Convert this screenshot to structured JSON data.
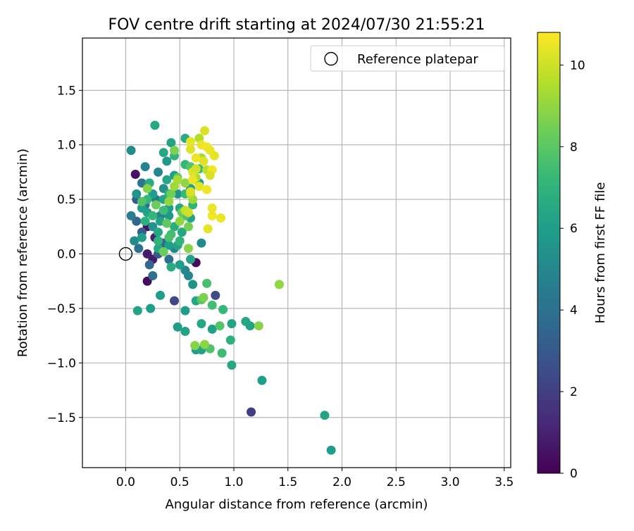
{
  "chart_data": {
    "type": "scatter",
    "title": "FOV centre drift starting at 2024/07/30 21:55:21",
    "xlabel": "Angular distance from reference (arcmin)",
    "ylabel": "Rotation from reference (arcmin)",
    "xlim": [
      -0.4,
      3.56
    ],
    "ylim": [
      -1.96,
      1.98
    ],
    "xticks": [
      0.0,
      0.5,
      1.0,
      1.5,
      2.0,
      2.5,
      3.0,
      3.5
    ],
    "xtick_labels": [
      "0.0",
      "0.5",
      "1.0",
      "1.5",
      "2.0",
      "2.5",
      "3.0",
      "3.5"
    ],
    "yticks": [
      -1.5,
      -1.0,
      -0.5,
      0.0,
      0.5,
      1.0,
      1.5
    ],
    "ytick_labels": [
      "−1.5",
      "−1.0",
      "−0.5",
      "0.0",
      "0.5",
      "1.0",
      "1.5"
    ],
    "grid": true,
    "legend": {
      "placement": "top-right",
      "entries": [
        "Reference platepar"
      ]
    },
    "reference_point": {
      "x": 0.0,
      "y": 0.0
    },
    "colorbar": {
      "label": "Hours from first FF file",
      "min": 0,
      "max": 10.8,
      "ticks": [
        0,
        2,
        4,
        6,
        8,
        10
      ],
      "tick_labels": [
        "0",
        "2",
        "4",
        "6",
        "8",
        "10"
      ],
      "colormap": "viridis",
      "colormap_stops": [
        "#440154",
        "#482878",
        "#3e4a89",
        "#31688e",
        "#26828e",
        "#1f9e89",
        "#35b779",
        "#6ece58",
        "#b5de2b",
        "#fde725"
      ]
    },
    "points": [
      {
        "x": 0.2,
        "y": -0.25,
        "h": 0.3
      },
      {
        "x": 0.65,
        "y": -0.08,
        "h": 0.3
      },
      {
        "x": 0.2,
        "y": 0.0,
        "h": 0.8
      },
      {
        "x": 0.25,
        "y": -0.05,
        "h": 0.8
      },
      {
        "x": 0.09,
        "y": 0.73,
        "h": 0.5
      },
      {
        "x": 0.2,
        "y": 0.25,
        "h": 0.5
      },
      {
        "x": 0.27,
        "y": 0.15,
        "h": 1.0
      },
      {
        "x": 1.16,
        "y": -1.45,
        "h": 2.0
      },
      {
        "x": 0.45,
        "y": -0.43,
        "h": 2.3
      },
      {
        "x": 0.83,
        "y": -0.38,
        "h": 2.5
      },
      {
        "x": 0.1,
        "y": 0.5,
        "h": 3.0
      },
      {
        "x": 0.15,
        "y": 0.2,
        "h": 3.2
      },
      {
        "x": 0.22,
        "y": -0.1,
        "h": 3.5
      },
      {
        "x": 0.3,
        "y": 0.0,
        "h": 3.0
      },
      {
        "x": 0.1,
        "y": 0.3,
        "h": 3.5
      },
      {
        "x": 0.18,
        "y": 0.45,
        "h": 3.8
      },
      {
        "x": 0.25,
        "y": -0.2,
        "h": 4.0
      },
      {
        "x": 0.35,
        "y": 0.1,
        "h": 3.6
      },
      {
        "x": 0.4,
        "y": -0.05,
        "h": 3.9
      },
      {
        "x": 0.15,
        "y": 0.65,
        "h": 4.2
      },
      {
        "x": 0.28,
        "y": 0.5,
        "h": 4.5
      },
      {
        "x": 0.12,
        "y": 0.05,
        "h": 4.0
      },
      {
        "x": 0.32,
        "y": 0.35,
        "h": 4.8
      },
      {
        "x": 0.05,
        "y": 0.35,
        "h": 4.6
      },
      {
        "x": 0.18,
        "y": 0.8,
        "h": 4.8
      },
      {
        "x": 0.05,
        "y": 0.95,
        "h": 5.2
      },
      {
        "x": 0.45,
        "y": 0.05,
        "h": 5.0
      },
      {
        "x": 0.55,
        "y": -0.15,
        "h": 5.0
      },
      {
        "x": 0.58,
        "y": -0.2,
        "h": 5.0
      },
      {
        "x": 0.62,
        "y": -0.28,
        "h": 5.5
      },
      {
        "x": 0.7,
        "y": 0.1,
        "h": 5.2
      },
      {
        "x": 0.3,
        "y": 0.75,
        "h": 5.0
      },
      {
        "x": 0.35,
        "y": 0.6,
        "h": 5.5
      },
      {
        "x": 0.4,
        "y": 0.35,
        "h": 5.8
      },
      {
        "x": 0.25,
        "y": 0.25,
        "h": 5.4
      },
      {
        "x": 0.1,
        "y": 0.55,
        "h": 5.6
      },
      {
        "x": 0.08,
        "y": 0.12,
        "h": 5.2
      },
      {
        "x": 0.48,
        "y": 0.55,
        "h": 5.6
      },
      {
        "x": 0.38,
        "y": 0.85,
        "h": 5.8
      },
      {
        "x": 0.5,
        "y": -0.1,
        "h": 6.0
      },
      {
        "x": 0.32,
        "y": -0.38,
        "h": 6.0
      },
      {
        "x": 0.23,
        "y": -0.5,
        "h": 6.0
      },
      {
        "x": 0.11,
        "y": -0.52,
        "h": 6.2
      },
      {
        "x": 0.48,
        "y": -0.67,
        "h": 6.0
      },
      {
        "x": 0.55,
        "y": -0.71,
        "h": 6.2
      },
      {
        "x": 0.55,
        "y": -0.52,
        "h": 6.0
      },
      {
        "x": 0.65,
        "y": -0.43,
        "h": 6.4
      },
      {
        "x": 0.65,
        "y": -0.88,
        "h": 6.0
      },
      {
        "x": 0.7,
        "y": -0.88,
        "h": 6.2
      },
      {
        "x": 0.7,
        "y": -0.64,
        "h": 6.4
      },
      {
        "x": 0.8,
        "y": -0.69,
        "h": 6.1
      },
      {
        "x": 0.98,
        "y": -0.64,
        "h": 6.3
      },
      {
        "x": 0.97,
        "y": -0.79,
        "h": 6.8
      },
      {
        "x": 0.98,
        "y": -1.02,
        "h": 6.5
      },
      {
        "x": 1.11,
        "y": -0.62,
        "h": 6.4
      },
      {
        "x": 1.15,
        "y": -0.66,
        "h": 6.2
      },
      {
        "x": 1.26,
        "y": -1.16,
        "h": 6.0
      },
      {
        "x": 1.84,
        "y": -1.48,
        "h": 6.2
      },
      {
        "x": 1.9,
        "y": -1.8,
        "h": 6.0
      },
      {
        "x": 0.35,
        "y": 0.93,
        "h": 6.4
      },
      {
        "x": 0.27,
        "y": 1.18,
        "h": 6.5
      },
      {
        "x": 0.42,
        "y": 1.02,
        "h": 6.2
      },
      {
        "x": 0.55,
        "y": 1.06,
        "h": 6.6
      },
      {
        "x": 0.45,
        "y": 0.72,
        "h": 6.0
      },
      {
        "x": 0.6,
        "y": 0.33,
        "h": 6.3
      },
      {
        "x": 0.2,
        "y": 0.38,
        "h": 6.2
      },
      {
        "x": 0.15,
        "y": 0.42,
        "h": 6.1
      },
      {
        "x": 0.52,
        "y": 0.2,
        "h": 6.5
      },
      {
        "x": 0.4,
        "y": 0.42,
        "h": 6.0
      },
      {
        "x": 0.3,
        "y": 0.2,
        "h": 6.4
      },
      {
        "x": 0.6,
        "y": -0.05,
        "h": 6.2
      },
      {
        "x": 0.42,
        "y": -0.12,
        "h": 6.6
      },
      {
        "x": 0.35,
        "y": 0.5,
        "h": 6.3
      },
      {
        "x": 0.25,
        "y": 0.55,
        "h": 6.0
      },
      {
        "x": 0.15,
        "y": 0.15,
        "h": 6.0
      },
      {
        "x": 0.3,
        "y": 0.05,
        "h": 6.5
      },
      {
        "x": 0.6,
        "y": 0.6,
        "h": 6.1
      },
      {
        "x": 0.68,
        "y": 0.65,
        "h": 6.0
      },
      {
        "x": 0.5,
        "y": 0.42,
        "h": 6.4
      },
      {
        "x": 0.58,
        "y": 0.35,
        "h": 6.2
      },
      {
        "x": 0.22,
        "y": 0.65,
        "h": 6.6
      },
      {
        "x": 0.45,
        "y": 0.25,
        "h": 6.7
      },
      {
        "x": 0.4,
        "y": 0.08,
        "h": 6.0
      },
      {
        "x": 0.48,
        "y": 0.08,
        "h": 6.3
      },
      {
        "x": 0.38,
        "y": 0.68,
        "h": 6.4
      },
      {
        "x": 0.32,
        "y": 0.3,
        "h": 6.2
      },
      {
        "x": 0.18,
        "y": 0.3,
        "h": 6.8
      },
      {
        "x": 0.45,
        "y": 0.9,
        "h": 7.0
      },
      {
        "x": 0.55,
        "y": 0.82,
        "h": 7.2
      },
      {
        "x": 0.4,
        "y": 0.55,
        "h": 7.0
      },
      {
        "x": 0.35,
        "y": 0.4,
        "h": 7.4
      },
      {
        "x": 0.2,
        "y": 0.5,
        "h": 7.2
      },
      {
        "x": 0.3,
        "y": 0.12,
        "h": 7.0
      },
      {
        "x": 0.5,
        "y": 0.12,
        "h": 7.1
      },
      {
        "x": 0.55,
        "y": 0.55,
        "h": 7.3
      },
      {
        "x": 0.62,
        "y": 0.45,
        "h": 7.0
      },
      {
        "x": 0.42,
        "y": 0.18,
        "h": 7.5
      },
      {
        "x": 0.25,
        "y": 0.35,
        "h": 7.2
      },
      {
        "x": 0.68,
        "y": 0.78,
        "h": 7.4
      },
      {
        "x": 0.75,
        "y": -0.27,
        "h": 7.6
      },
      {
        "x": 0.8,
        "y": -0.47,
        "h": 7.5
      },
      {
        "x": 0.9,
        "y": -0.51,
        "h": 7.2
      },
      {
        "x": 0.89,
        "y": -0.91,
        "h": 7.4
      },
      {
        "x": 0.87,
        "y": -0.66,
        "h": 7.8
      },
      {
        "x": 0.78,
        "y": -0.87,
        "h": 7.8
      },
      {
        "x": 0.7,
        "y": -0.42,
        "h": 8.0
      },
      {
        "x": 0.6,
        "y": 0.8,
        "h": 7.8
      },
      {
        "x": 0.4,
        "y": 0.15,
        "h": 7.6
      },
      {
        "x": 0.55,
        "y": 0.35,
        "h": 7.7
      },
      {
        "x": 0.15,
        "y": 0.48,
        "h": 7.8
      },
      {
        "x": 0.48,
        "y": 0.7,
        "h": 8.0
      },
      {
        "x": 0.52,
        "y": 0.38,
        "h": 8.2
      },
      {
        "x": 0.38,
        "y": 0.28,
        "h": 8.1
      },
      {
        "x": 0.42,
        "y": 0.55,
        "h": 8.4
      },
      {
        "x": 0.35,
        "y": 0.02,
        "h": 8.3
      },
      {
        "x": 0.58,
        "y": 0.25,
        "h": 8.5
      },
      {
        "x": 0.28,
        "y": 0.45,
        "h": 8.3
      },
      {
        "x": 0.45,
        "y": 0.95,
        "h": 8.6
      },
      {
        "x": 0.2,
        "y": 0.6,
        "h": 8.8
      },
      {
        "x": 0.64,
        "y": -0.84,
        "h": 8.8
      },
      {
        "x": 0.73,
        "y": -0.83,
        "h": 8.9
      },
      {
        "x": 0.72,
        "y": -0.4,
        "h": 8.6
      },
      {
        "x": 1.23,
        "y": -0.66,
        "h": 8.8
      },
      {
        "x": 1.42,
        "y": -0.28,
        "h": 9.0
      },
      {
        "x": 0.5,
        "y": 0.3,
        "h": 9.0
      },
      {
        "x": 0.45,
        "y": 0.62,
        "h": 9.2
      },
      {
        "x": 0.55,
        "y": 0.65,
        "h": 9.0
      },
      {
        "x": 0.62,
        "y": 0.5,
        "h": 9.2
      },
      {
        "x": 0.4,
        "y": 0.48,
        "h": 9.0
      },
      {
        "x": 0.58,
        "y": 0.05,
        "h": 8.8
      },
      {
        "x": 0.48,
        "y": 0.68,
        "h": 9.4
      },
      {
        "x": 0.7,
        "y": 0.88,
        "h": 9.3
      },
      {
        "x": 0.65,
        "y": 0.7,
        "h": 9.5
      },
      {
        "x": 0.68,
        "y": 1.06,
        "h": 9.6
      },
      {
        "x": 0.6,
        "y": 0.55,
        "h": 9.5
      },
      {
        "x": 0.75,
        "y": 0.77,
        "h": 9.7
      },
      {
        "x": 0.55,
        "y": 0.4,
        "h": 9.8
      },
      {
        "x": 0.73,
        "y": 1.13,
        "h": 10.2
      },
      {
        "x": 0.6,
        "y": 1.03,
        "h": 10.4
      },
      {
        "x": 0.6,
        "y": 0.96,
        "h": 10.3
      },
      {
        "x": 0.7,
        "y": 1.0,
        "h": 10.5
      },
      {
        "x": 0.75,
        "y": 0.98,
        "h": 10.6
      },
      {
        "x": 0.78,
        "y": 0.95,
        "h": 10.5
      },
      {
        "x": 0.82,
        "y": 0.9,
        "h": 10.4
      },
      {
        "x": 0.8,
        "y": 0.77,
        "h": 10.6
      },
      {
        "x": 0.72,
        "y": 0.85,
        "h": 10.3
      },
      {
        "x": 0.78,
        "y": 0.72,
        "h": 10.2
      },
      {
        "x": 0.65,
        "y": 0.88,
        "h": 10.5
      },
      {
        "x": 0.62,
        "y": 0.75,
        "h": 10.3
      },
      {
        "x": 0.62,
        "y": 0.68,
        "h": 10.5
      },
      {
        "x": 0.68,
        "y": 0.62,
        "h": 10.4
      },
      {
        "x": 0.75,
        "y": 0.59,
        "h": 10.6
      },
      {
        "x": 0.6,
        "y": 0.57,
        "h": 10.2
      },
      {
        "x": 0.8,
        "y": 0.42,
        "h": 10.5
      },
      {
        "x": 0.8,
        "y": 0.35,
        "h": 10.6
      },
      {
        "x": 0.88,
        "y": 0.33,
        "h": 10.5
      },
      {
        "x": 0.76,
        "y": 0.23,
        "h": 10.4
      },
      {
        "x": 0.58,
        "y": 0.38,
        "h": 10.0
      },
      {
        "x": 0.65,
        "y": 0.78,
        "h": 10.1
      }
    ]
  }
}
